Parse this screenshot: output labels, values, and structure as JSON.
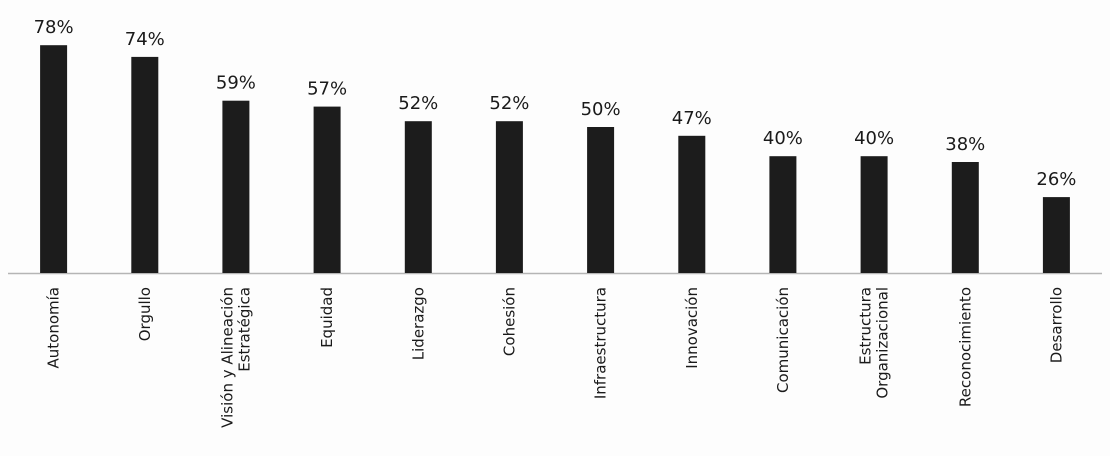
{
  "chart_data": {
    "type": "bar",
    "categories": [
      [
        "Autonomía"
      ],
      [
        "Orgullo"
      ],
      [
        "Visión y Alineación",
        "Estratégica"
      ],
      [
        "Equidad"
      ],
      [
        "Liderazgo"
      ],
      [
        "Cohesión"
      ],
      [
        "Infraestructura"
      ],
      [
        "Innovación"
      ],
      [
        "Comunicación"
      ],
      [
        "Estructura",
        "Organizacional"
      ],
      [
        "Reconocimiento"
      ],
      [
        "Desarrollo"
      ]
    ],
    "values": [
      78,
      74,
      59,
      57,
      52,
      52,
      50,
      47,
      40,
      40,
      38,
      26
    ],
    "value_labels": [
      "78%",
      "74%",
      "59%",
      "57%",
      "52%",
      "52%",
      "50%",
      "47%",
      "40%",
      "40%",
      "38%",
      "26%"
    ],
    "ylim": [
      0,
      100
    ],
    "grid": false,
    "legend": "none",
    "bar_color": "#1c1c1c",
    "axis_color": "#b5b5b5",
    "text_color": "#1a1a1a"
  }
}
